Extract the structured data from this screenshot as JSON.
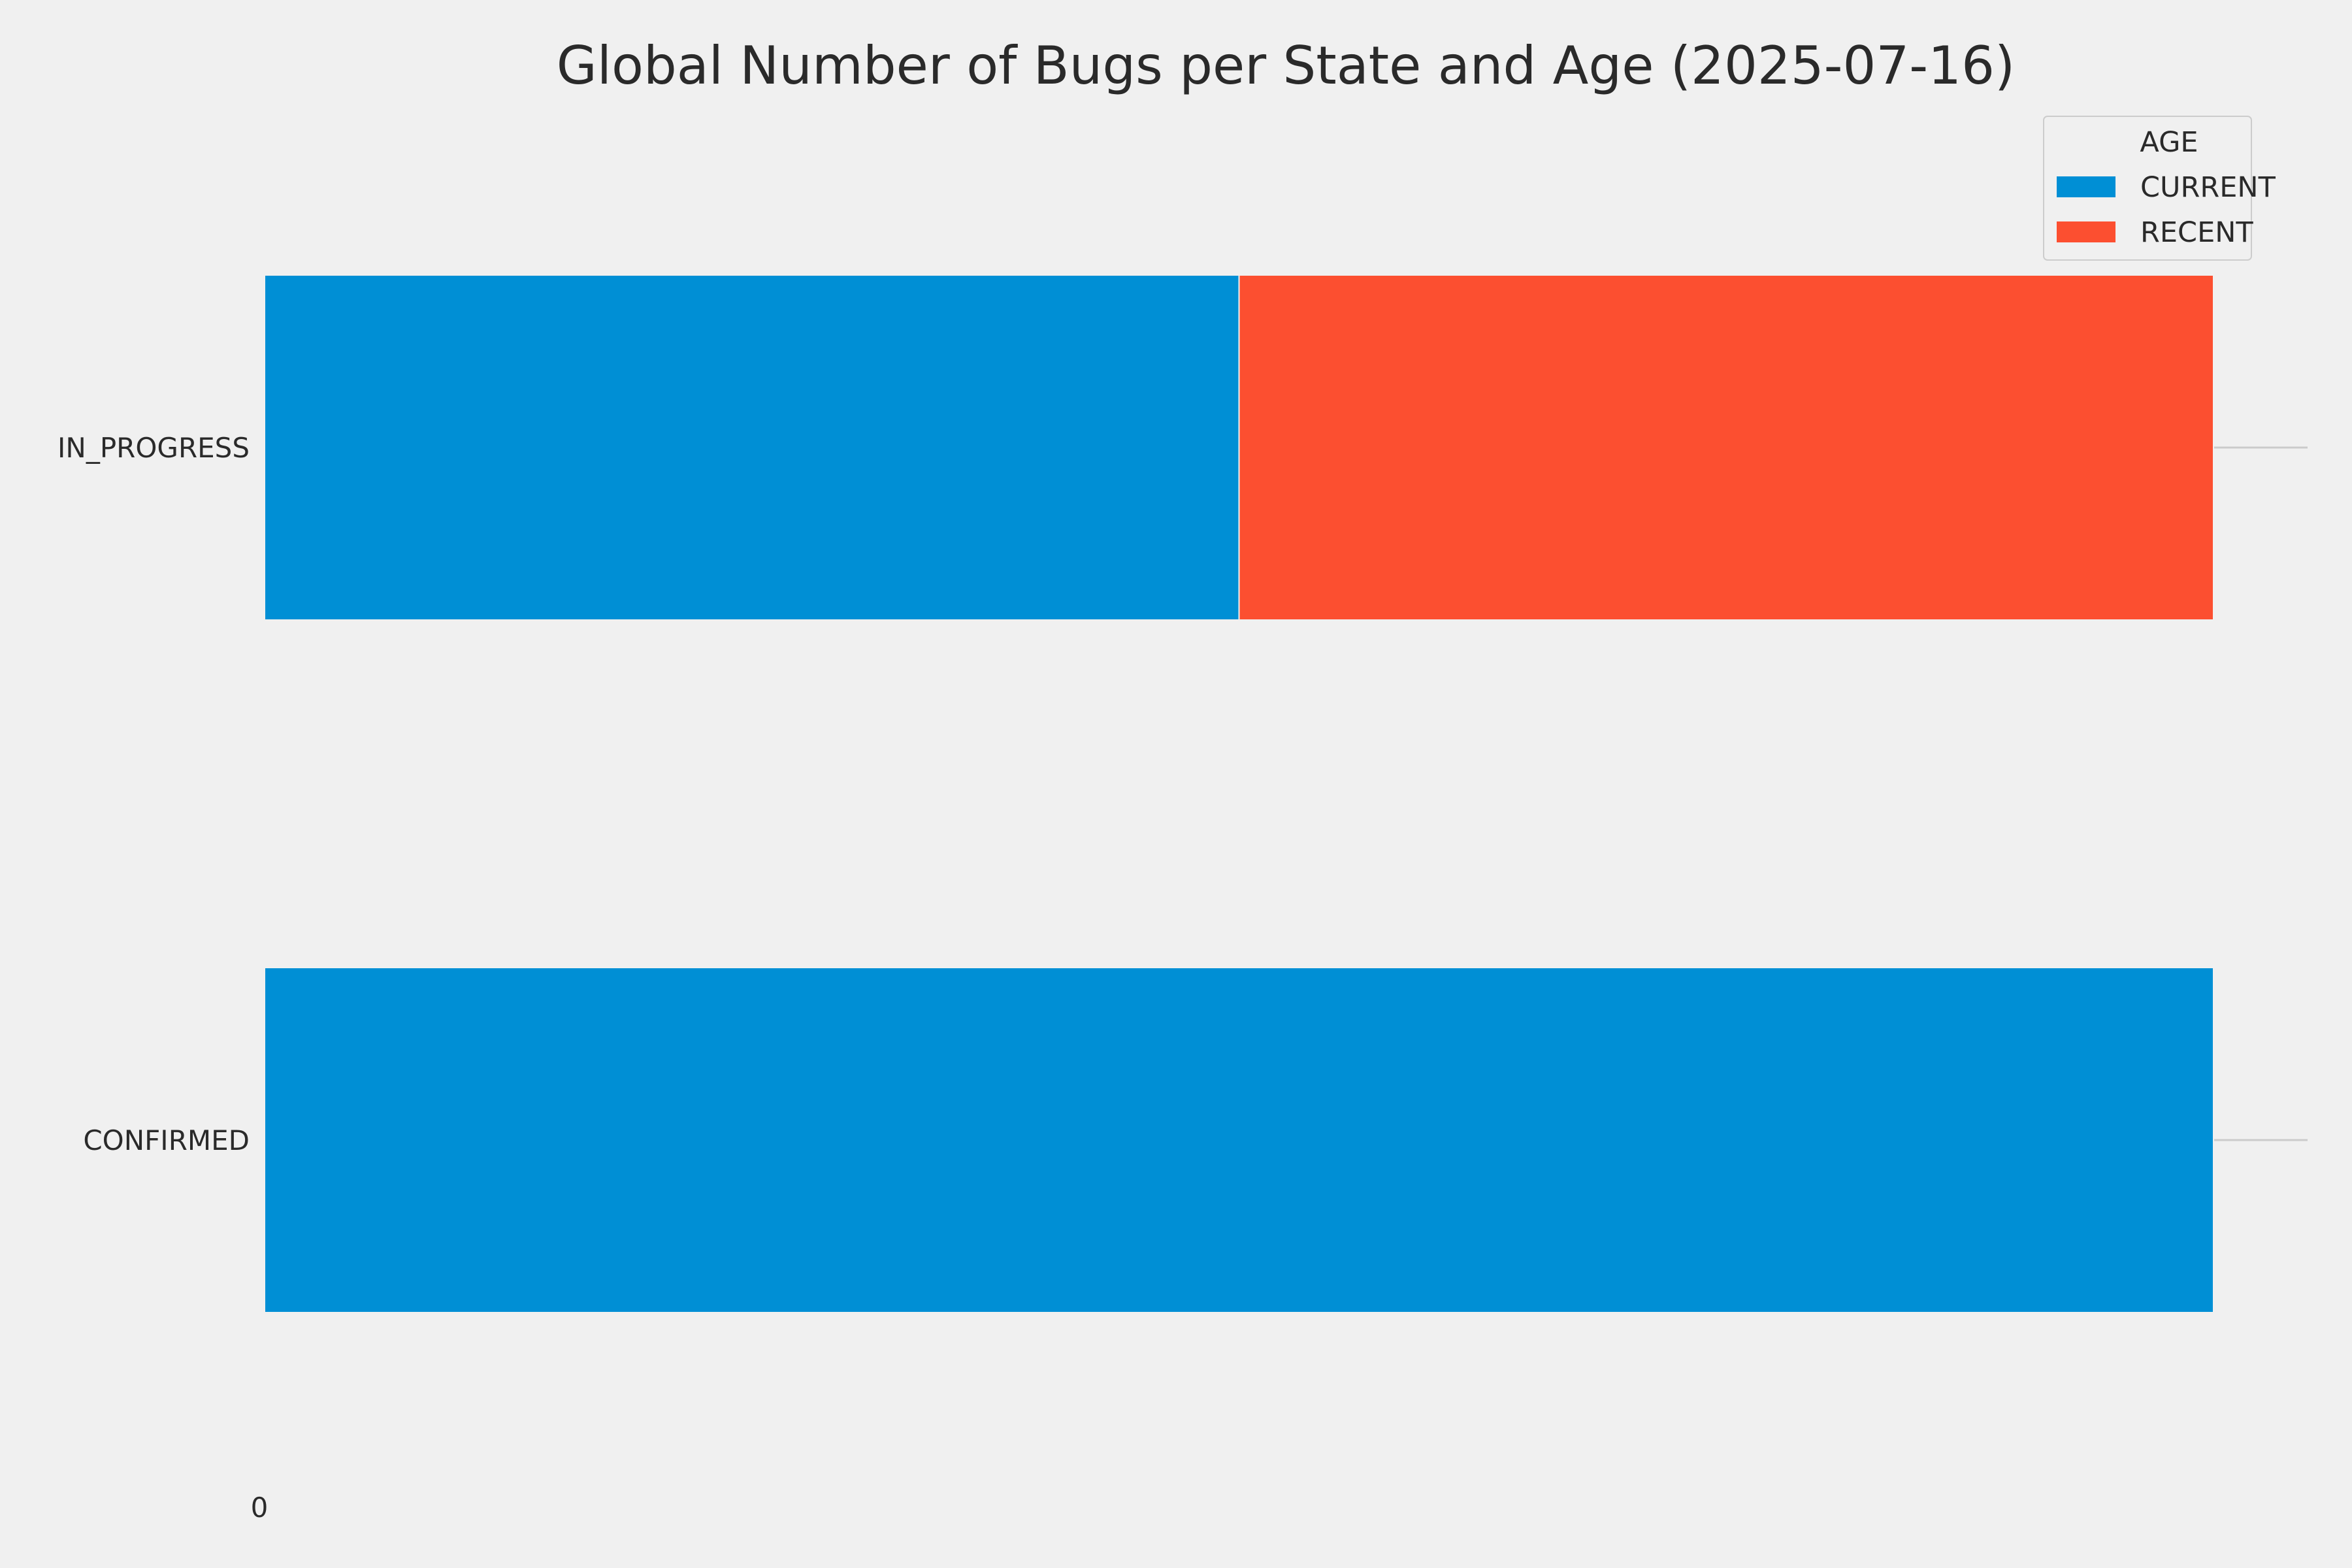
{
  "chart_data": {
    "type": "bar",
    "orientation": "horizontal",
    "stacked": true,
    "title": "Global Number of Bugs per State and Age (2025-07-16)",
    "xlabel": "",
    "ylabel": "",
    "categories": [
      "IN_PROGRESS",
      "CONFIRMED"
    ],
    "series": [
      {
        "name": "CURRENT",
        "values": [
          1,
          2
        ]
      },
      {
        "name": "RECENT",
        "values": [
          1,
          0
        ]
      }
    ],
    "xlim": [
      0,
      2
    ],
    "x_ticks": [
      "0"
    ],
    "grid": true,
    "legend": {
      "title": "AGE",
      "placement": "top-right"
    },
    "colors": {
      "CURRENT": "#008fd5",
      "RECENT": "#fc4f30",
      "background": "#f0f0f0",
      "grid": "#cbcbcb",
      "text": "#2a2a2a"
    }
  }
}
